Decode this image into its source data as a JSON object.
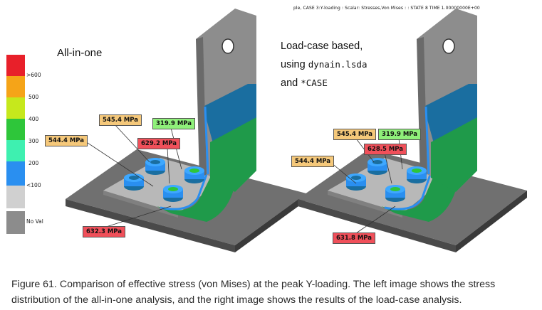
{
  "header": {
    "text": "ple, CASE 3:Y-loading : Scalar: Stresses,Von Mises : : STATE 8        TIME 1.00000000E+00"
  },
  "left_title": "All-in-one",
  "right_title": {
    "line1": "Load-case based,",
    "line2_prefix": "using",
    "line2_code": "dynain.lsda",
    "line3_prefix": "and",
    "line3_code": "*CASE"
  },
  "legend": {
    "labels": [
      ">600",
      "500",
      "400",
      "300",
      "200",
      "<100",
      "No Val"
    ],
    "colors": [
      "#e8202a",
      "#f5a418",
      "#c6e81c",
      "#2ec63a",
      "#3ef0b0",
      "#2a8ff0",
      "#d0d0d0",
      "#8c8c8c"
    ]
  },
  "callouts_left": {
    "c1": "545.4 MPa",
    "c2": "319.9 MPa",
    "c3": "544.4 MPa",
    "c4": "629.2 MPa",
    "c5": "632.3 MPa"
  },
  "callouts_right": {
    "c1": "545.4 MPa",
    "c2": "319.9 MPa",
    "c3": "544.4 MPa",
    "c4": "628.5 MPa",
    "c5": "631.8 MPa"
  },
  "callout_colors": {
    "orange": "#f5c87a",
    "green": "#8ff07a",
    "red": "#f0505a"
  },
  "caption": "Figure 61. Comparison of effective stress (von Mises) at the peak Y-loading. The left image shows the stress distribution of the all-in-one analysis, and the right image shows the results of the load-case analysis."
}
